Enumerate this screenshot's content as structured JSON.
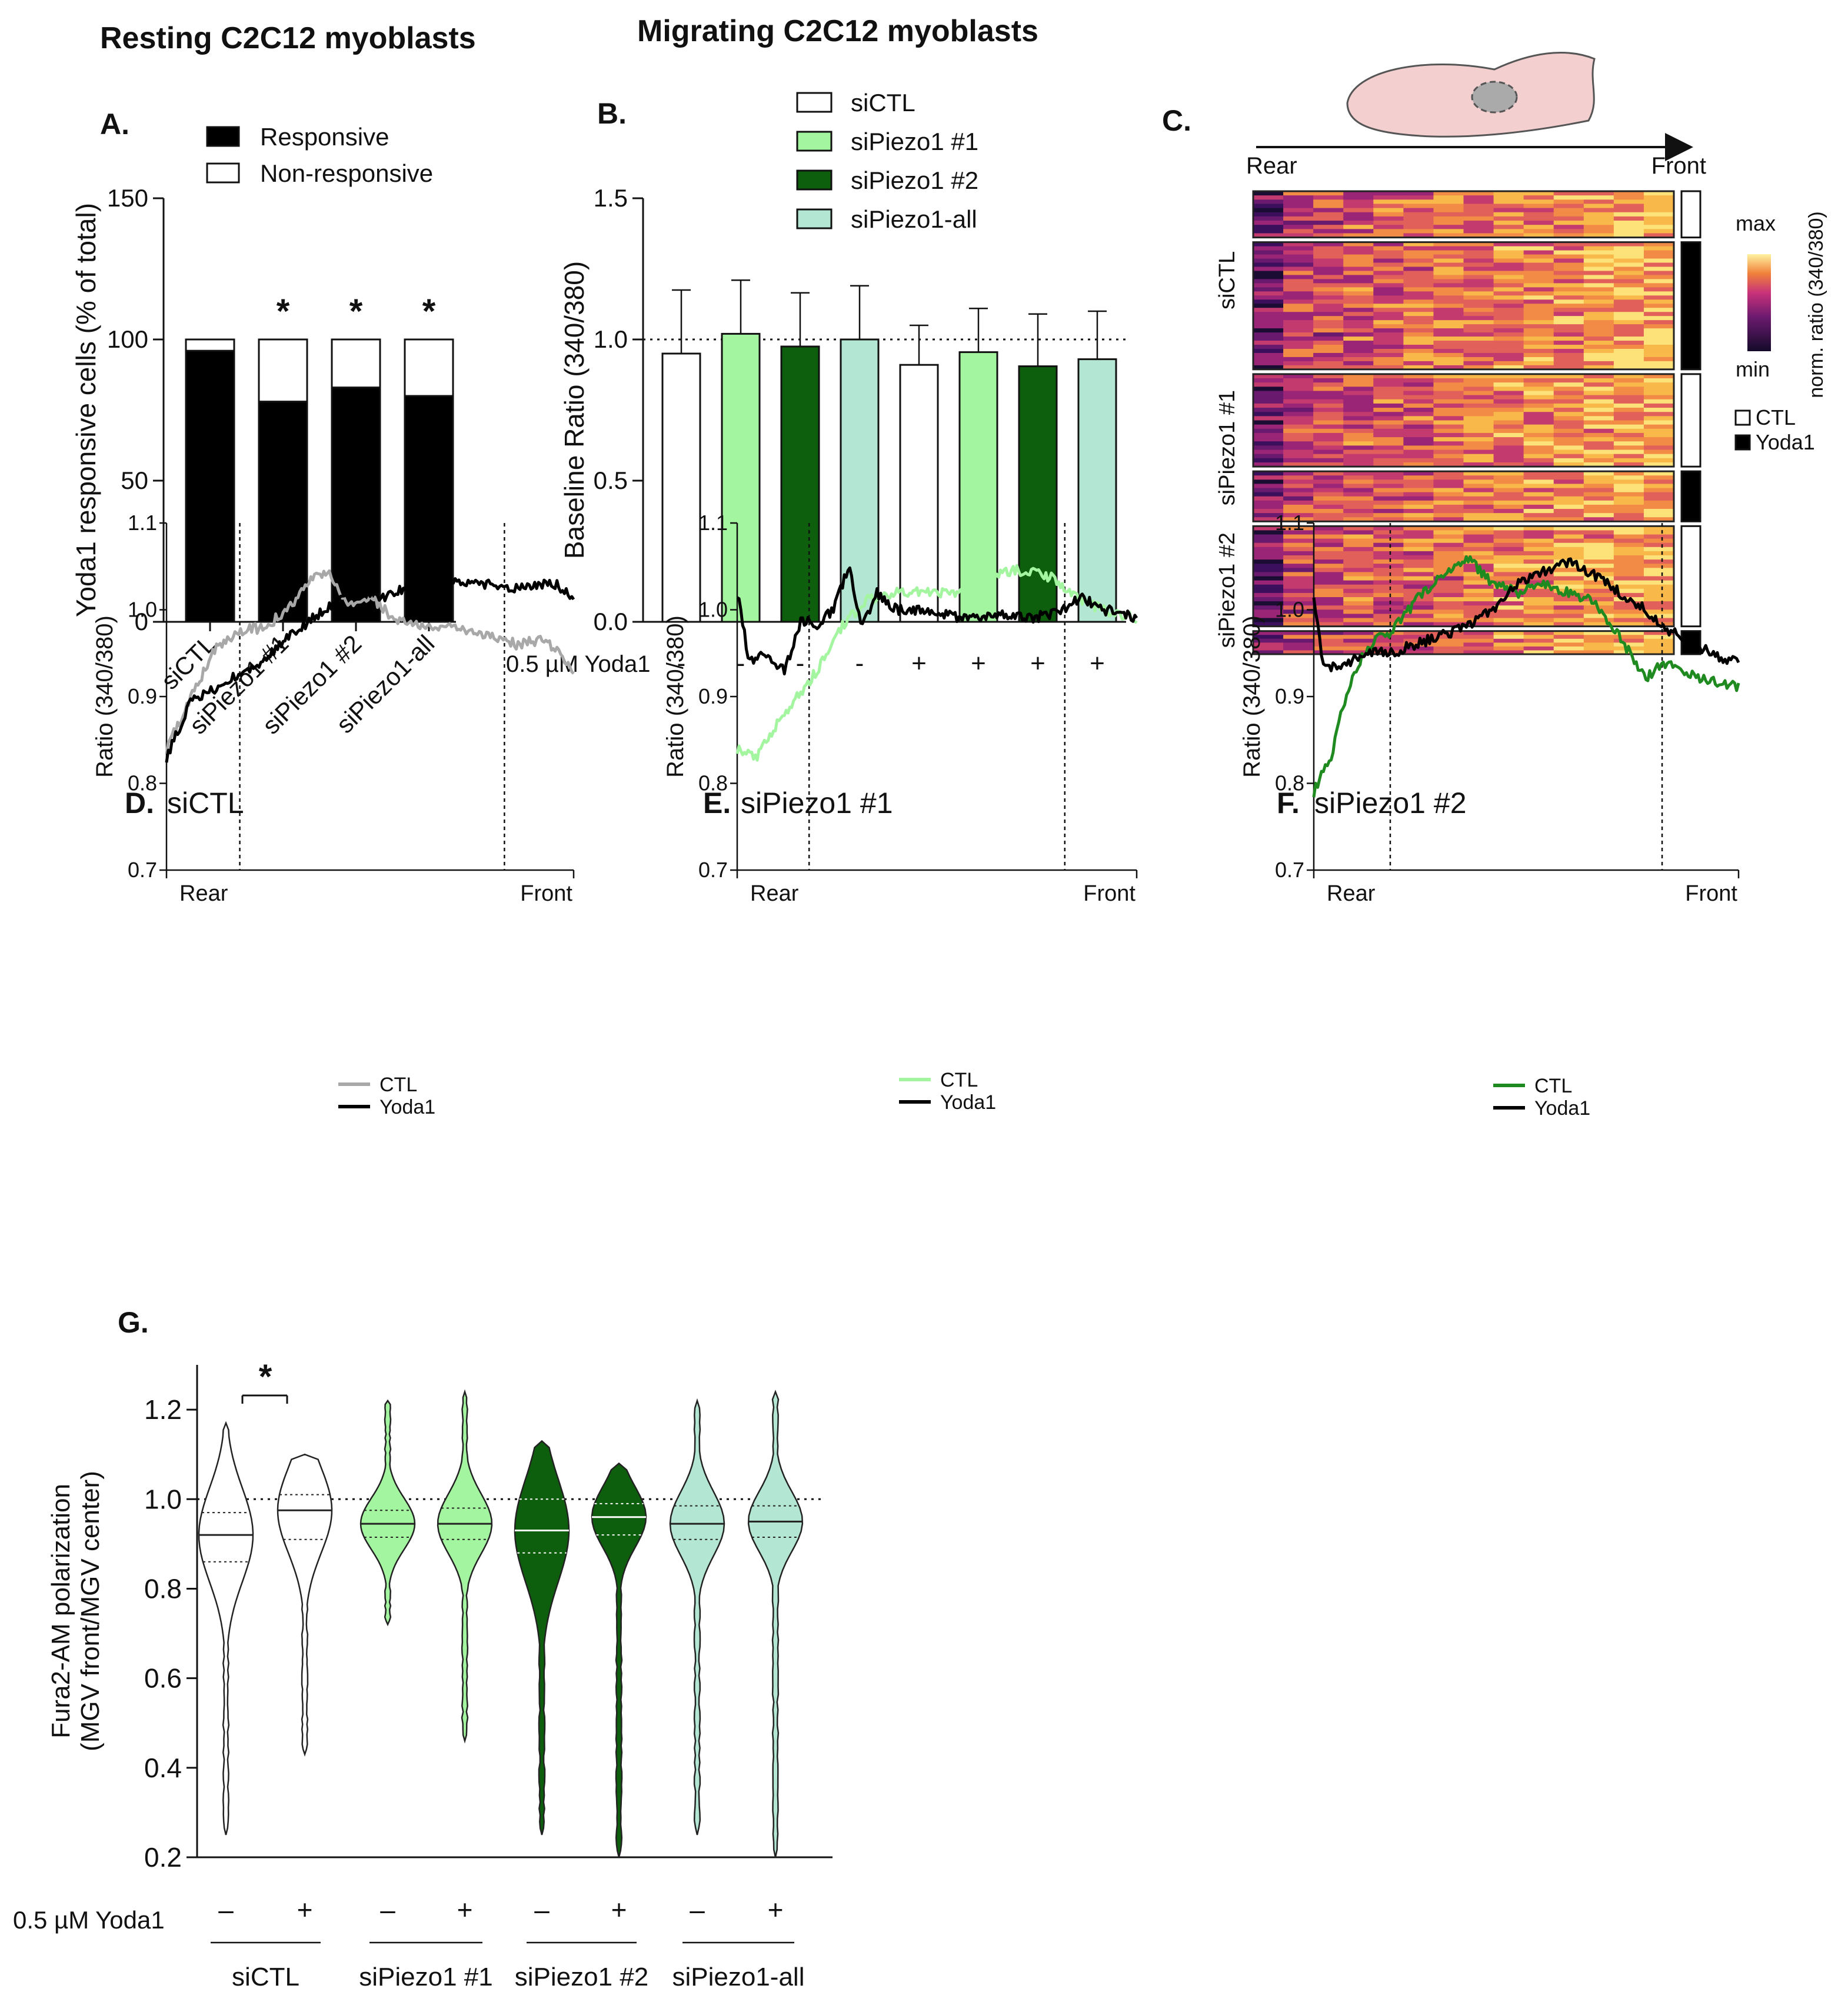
{
  "figure": {
    "resting_title": "Resting C2C12 myoblasts",
    "migrating_title": "Migrating C2C12 myoblasts"
  },
  "colors": {
    "siCTL": "#ffffff",
    "siPiezo1_1": "#a4f5a0",
    "siPiezo1_2": "#0d5e0d",
    "siPiezo1_all": "#b4e6d4",
    "black": "#000000",
    "grey": "#a8a8a8",
    "lightgreen": "#a4f5a0",
    "green": "#1f8a1f",
    "heatmap_min": "#1a0a2e",
    "heatmap_mid": "#b5267a",
    "heatmap_max": "#fff3a0",
    "cell_fill": "#f3cfd0"
  },
  "chart_data": [
    {
      "id": "A",
      "panel_label": "A.",
      "type": "bar",
      "stacked": true,
      "categories": [
        "siCTL",
        "siPiezo1 #1",
        "siPiezo1 #2",
        "siPiezo1-all"
      ],
      "series": [
        {
          "name": "Responsive",
          "values": [
            96,
            78,
            83,
            80
          ],
          "color": "#000000"
        },
        {
          "name": "Non-responsive",
          "values": [
            4,
            22,
            17,
            20
          ],
          "color": "#ffffff"
        }
      ],
      "significance": [
        "",
        "*",
        "*",
        "*"
      ],
      "ylabel": "Yoda1 responsive cells (% of total)",
      "ylim": [
        0,
        150
      ],
      "yticks": [
        "0",
        "50",
        "100",
        "150"
      ],
      "legend": "top-right"
    },
    {
      "id": "B",
      "panel_label": "B.",
      "type": "bar",
      "categories": [
        "siCTL",
        "siPiezo1 #1",
        "siPiezo1 #2",
        "siPiezo1-all",
        "siCTL",
        "siPiezo1 #1",
        "siPiezo1 #2",
        "siPiezo1-all"
      ],
      "values": [
        0.95,
        1.02,
        0.975,
        1.0,
        0.91,
        0.955,
        0.905,
        0.93
      ],
      "errors": [
        0.225,
        0.19,
        0.19,
        0.19,
        0.14,
        0.155,
        0.185,
        0.17
      ],
      "treatment_label": "0.5 µM Yoda1",
      "treatment": [
        "-",
        "-",
        "-",
        "-",
        "+",
        "+",
        "+",
        "+"
      ],
      "legend_names": [
        "siCTL",
        "siPiezo1 #1",
        "siPiezo1 #2",
        "siPiezo1-all"
      ],
      "ylabel": "Baseline Ratio (340/380)",
      "ylim": [
        0,
        1.5
      ],
      "yticks": [
        "0.0",
        "0.5",
        "1.0",
        "1.5"
      ],
      "reference_line": 1.0,
      "legend": "top"
    },
    {
      "id": "C",
      "panel_label": "C.",
      "type": "heatmap",
      "axis_left": "Rear",
      "axis_right": "Front",
      "rows": [
        {
          "group": "siCTL",
          "condition": "CTL",
          "weight": 0.12
        },
        {
          "group": "siCTL",
          "condition": "Yoda1",
          "weight": 0.33
        },
        {
          "group": "siPiezo1 #1",
          "condition": "CTL",
          "weight": 0.24
        },
        {
          "group": "siPiezo1 #1",
          "condition": "Yoda1",
          "weight": 0.13
        },
        {
          "group": "siPiezo1 #2",
          "condition": "CTL",
          "weight": 0.26
        },
        {
          "group": "siPiezo1 #2",
          "condition": "Yoda1",
          "weight": 0.06
        }
      ],
      "colorbar_max": "max",
      "colorbar_min": "min",
      "colorbar_label": "norm. ratio (340/380)",
      "legend": [
        {
          "name": "CTL"
        },
        {
          "name": "Yoda1"
        }
      ]
    },
    {
      "id": "D",
      "panel_label": "D.",
      "title": "siCTL",
      "type": "line",
      "x_labels": [
        "Rear",
        "Front"
      ],
      "ylabel": "Ratio (340/380)",
      "ylim": [
        0.7,
        1.1
      ],
      "yticks": [
        "0.7",
        "0.8",
        "0.9",
        "1.0",
        "1.1"
      ],
      "vlines": [
        0.18,
        0.83
      ],
      "series": [
        {
          "name": "CTL",
          "color": "#a8a8a8",
          "x": [
            0,
            0.06,
            0.12,
            0.18,
            0.24,
            0.3,
            0.36,
            0.4,
            0.44,
            0.5,
            0.56,
            0.62,
            0.68,
            0.74,
            0.8,
            0.86,
            0.92,
            0.96,
            1.0
          ],
          "y": [
            0.84,
            0.9,
            0.955,
            0.975,
            0.98,
            1.0,
            1.04,
            1.04,
            1.005,
            1.015,
            0.99,
            0.98,
            0.98,
            0.975,
            0.97,
            0.96,
            0.965,
            0.955,
            0.93
          ]
        },
        {
          "name": "Yoda1",
          "color": "#000000",
          "x": [
            0,
            0.06,
            0.12,
            0.18,
            0.24,
            0.3,
            0.36,
            0.42,
            0.48,
            0.54,
            0.6,
            0.66,
            0.72,
            0.78,
            0.84,
            0.9,
            0.96,
            1.0
          ],
          "y": [
            0.83,
            0.895,
            0.91,
            0.925,
            0.94,
            0.97,
            0.99,
            1.01,
            1.02,
            1.015,
            1.03,
            1.04,
            1.03,
            1.03,
            1.025,
            1.03,
            1.03,
            1.01
          ]
        }
      ]
    },
    {
      "id": "E",
      "panel_label": "E.",
      "title": "siPiezo1 #1",
      "type": "line",
      "x_labels": [
        "Rear",
        "Front"
      ],
      "ylabel": "Ratio (340/380)",
      "ylim": [
        0.7,
        1.1
      ],
      "yticks": [
        "0.7",
        "0.8",
        "0.9",
        "1.0",
        "1.1"
      ],
      "vlines": [
        0.18,
        0.82
      ],
      "series": [
        {
          "name": "CTL",
          "color": "#a4f5a0",
          "x": [
            0,
            0.05,
            0.1,
            0.15,
            0.2,
            0.26,
            0.32,
            0.4,
            0.48,
            0.56,
            0.62,
            0.68,
            0.74,
            0.8,
            0.86,
            0.92,
            1.0
          ],
          "y": [
            0.84,
            0.83,
            0.87,
            0.9,
            0.93,
            0.98,
            1.01,
            1.02,
            1.02,
            1.02,
            1.035,
            1.045,
            1.045,
            1.035,
            1.01,
            1.0,
            0.99
          ]
        },
        {
          "name": "Yoda1",
          "color": "#000000",
          "x": [
            0,
            0.03,
            0.07,
            0.12,
            0.16,
            0.2,
            0.24,
            0.28,
            0.31,
            0.35,
            0.4,
            0.48,
            0.56,
            0.64,
            0.72,
            0.8,
            0.86,
            0.92,
            1.0
          ],
          "y": [
            1.02,
            0.94,
            0.95,
            0.93,
            0.99,
            0.98,
            1.0,
            1.05,
            0.98,
            1.02,
            1.0,
            1.0,
            0.99,
            0.995,
            0.99,
            0.995,
            1.015,
            1.0,
            0.99
          ]
        }
      ]
    },
    {
      "id": "F",
      "panel_label": "F.",
      "title": "siPiezo1 #2",
      "type": "line",
      "x_labels": [
        "Rear",
        "Front"
      ],
      "ylabel": "Ratio (340/380)",
      "ylim": [
        0.7,
        1.1
      ],
      "yticks": [
        "0.7",
        "0.8",
        "0.9",
        "1.0",
        "1.1"
      ],
      "vlines": [
        0.18,
        0.82
      ],
      "series": [
        {
          "name": "CTL",
          "color": "#1f8a1f",
          "x": [
            0,
            0.04,
            0.08,
            0.13,
            0.18,
            0.24,
            0.3,
            0.36,
            0.42,
            0.48,
            0.54,
            0.6,
            0.66,
            0.72,
            0.78,
            0.82,
            0.86,
            0.92,
            1.0
          ],
          "y": [
            0.79,
            0.83,
            0.91,
            0.96,
            0.975,
            1.01,
            1.04,
            1.06,
            1.03,
            1.02,
            1.03,
            1.02,
            1.01,
            0.97,
            0.92,
            0.94,
            0.93,
            0.92,
            0.91
          ]
        },
        {
          "name": "Yoda1",
          "color": "#000000",
          "x": [
            0,
            0.02,
            0.06,
            0.12,
            0.18,
            0.24,
            0.3,
            0.36,
            0.42,
            0.48,
            0.54,
            0.6,
            0.66,
            0.72,
            0.78,
            0.84,
            0.9,
            0.95,
            1.0
          ],
          "y": [
            1.02,
            0.94,
            0.93,
            0.95,
            0.95,
            0.96,
            0.97,
            0.98,
            1.0,
            1.03,
            1.045,
            1.055,
            1.04,
            1.02,
            1.0,
            0.975,
            0.96,
            0.945,
            0.94
          ]
        }
      ]
    },
    {
      "id": "G",
      "panel_label": "G.",
      "type": "violin",
      "ylabel_lines": [
        "Fura2-AM polarization",
        "(MGV front/MGV center)"
      ],
      "ylim": [
        0.2,
        1.3
      ],
      "yticks": [
        "0.2",
        "0.4",
        "0.6",
        "0.8",
        "1.0",
        "1.2"
      ],
      "reference_line": 1.0,
      "treatment_label": "0.5 µM Yoda1",
      "treatment": [
        "–",
        "+",
        "–",
        "+",
        "–",
        "+",
        "–",
        "+"
      ],
      "group_labels": [
        "siCTL",
        "siPiezo1 #1",
        "siPiezo1 #2",
        "siPiezo1-all"
      ],
      "significance": {
        "between": [
          0,
          1
        ],
        "label": "*"
      },
      "violins": [
        {
          "group": "siCTL",
          "color": "#ffffff",
          "min": 0.25,
          "max": 1.17,
          "median": 0.92,
          "q1": 0.86,
          "q3": 0.97
        },
        {
          "group": "siCTL",
          "color": "#ffffff",
          "min": 0.43,
          "max": 1.1,
          "median": 0.975,
          "q1": 0.91,
          "q3": 1.01
        },
        {
          "group": "siPiezo1 #1",
          "color": "#a4f5a0",
          "min": 0.72,
          "max": 1.22,
          "median": 0.945,
          "q1": 0.915,
          "q3": 0.975
        },
        {
          "group": "siPiezo1 #1",
          "color": "#a4f5a0",
          "min": 0.46,
          "max": 1.24,
          "median": 0.945,
          "q1": 0.91,
          "q3": 0.98
        },
        {
          "group": "siPiezo1 #2",
          "color": "#0d5e0d",
          "min": 0.25,
          "max": 1.13,
          "median": 0.93,
          "q1": 0.88,
          "q3": 1.0
        },
        {
          "group": "siPiezo1 #2",
          "color": "#0d5e0d",
          "min": 0.2,
          "max": 1.08,
          "median": 0.96,
          "q1": 0.92,
          "q3": 0.99
        },
        {
          "group": "siPiezo1-all",
          "color": "#b4e6d4",
          "min": 0.25,
          "max": 1.22,
          "median": 0.945,
          "q1": 0.91,
          "q3": 0.985
        },
        {
          "group": "siPiezo1-all",
          "color": "#b4e6d4",
          "min": 0.2,
          "max": 1.24,
          "median": 0.95,
          "q1": 0.915,
          "q3": 0.985
        }
      ]
    }
  ]
}
